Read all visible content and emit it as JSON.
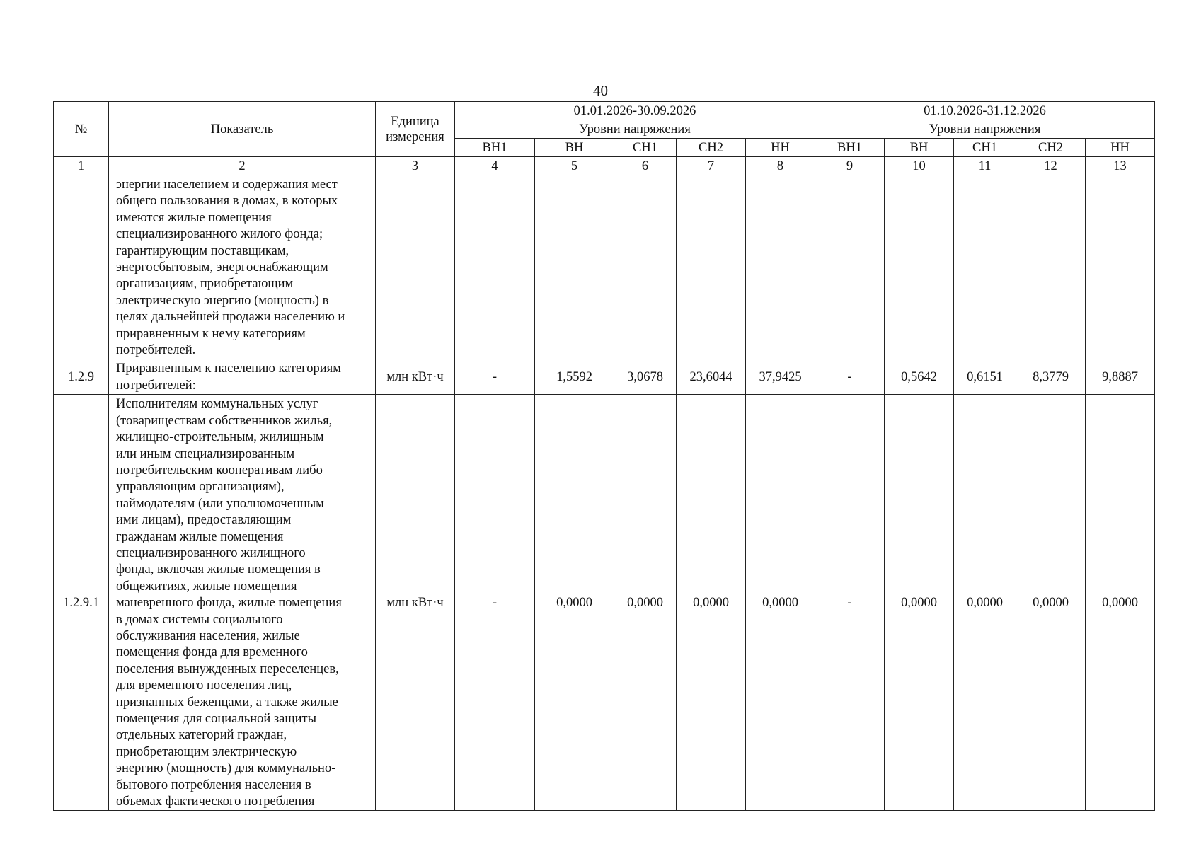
{
  "page_number": "40",
  "header": {
    "no": "№",
    "indicator": "Показатель",
    "unit": "Единица\nизмерения",
    "period1": "01.01.2026-30.09.2026",
    "period2": "01.10.2026-31.12.2026",
    "voltage_levels": "Уровни напряжения",
    "levels": [
      "ВН1",
      "ВН",
      "СН1",
      "СН2",
      "НН",
      "ВН1",
      "ВН",
      "СН1",
      "СН2",
      "НН"
    ],
    "col_numbers": [
      "1",
      "2",
      "3",
      "4",
      "5",
      "6",
      "7",
      "8",
      "9",
      "10",
      "11",
      "12",
      "13"
    ]
  },
  "rows": [
    {
      "no": "",
      "indicator": "энергии населением и содержания мест\nобщего пользования в домах, в которых\nимеются жилые помещения\nспециализированного жилого фонда;\nгарантирующим поставщикам,\nэнергосбытовым, энергоснабжающим\nорганизациям, приобретающим\nэлектрическую энергию (мощность) в\nцелях дальнейшей продажи населению и\nприравненным к нему категориям\nпотребителей.",
      "unit": "",
      "values": [
        "",
        "",
        "",
        "",
        "",
        "",
        "",
        "",
        "",
        ""
      ]
    },
    {
      "no": "1.2.9",
      "indicator": "Приравненным к населению категориям\nпотребителей:",
      "unit": "млн кВт·ч",
      "values": [
        "-",
        "1,5592",
        "3,0678",
        "23,6044",
        "37,9425",
        "-",
        "0,5642",
        "0,6151",
        "8,3779",
        "9,8887"
      ]
    },
    {
      "no": "1.2.9.1",
      "indicator": "Исполнителям коммунальных услуг\n(товариществам собственников жилья,\nжилищно-строительным, жилищным\nили иным специализированным\nпотребительским кооперативам либо\nуправляющим организациям),\nнаймодателям (или уполномоченным\nими лицам), предоставляющим\nгражданам жилые помещения\nспециализированного жилищного\nфонда, включая жилые помещения в\nобщежитиях, жилые помещения\nманевренного фонда, жилые помещения\nв домах системы социального\nобслуживания населения, жилые\nпомещения фонда для временного\nпоселения вынужденных переселенцев,\nдля временного поселения лиц,\nпризнанных беженцами, а также жилые\nпомещения для социальной защиты\nотдельных категорий граждан,\nприобретающим электрическую\nэнергию (мощность) для коммунально-\nбытового потребления населения в\nобъемах фактического потребления",
      "unit": "млн кВт·ч",
      "values": [
        "-",
        "0,0000",
        "0,0000",
        "0,0000",
        "0,0000",
        "-",
        "0,0000",
        "0,0000",
        "0,0000",
        "0,0000"
      ]
    }
  ]
}
